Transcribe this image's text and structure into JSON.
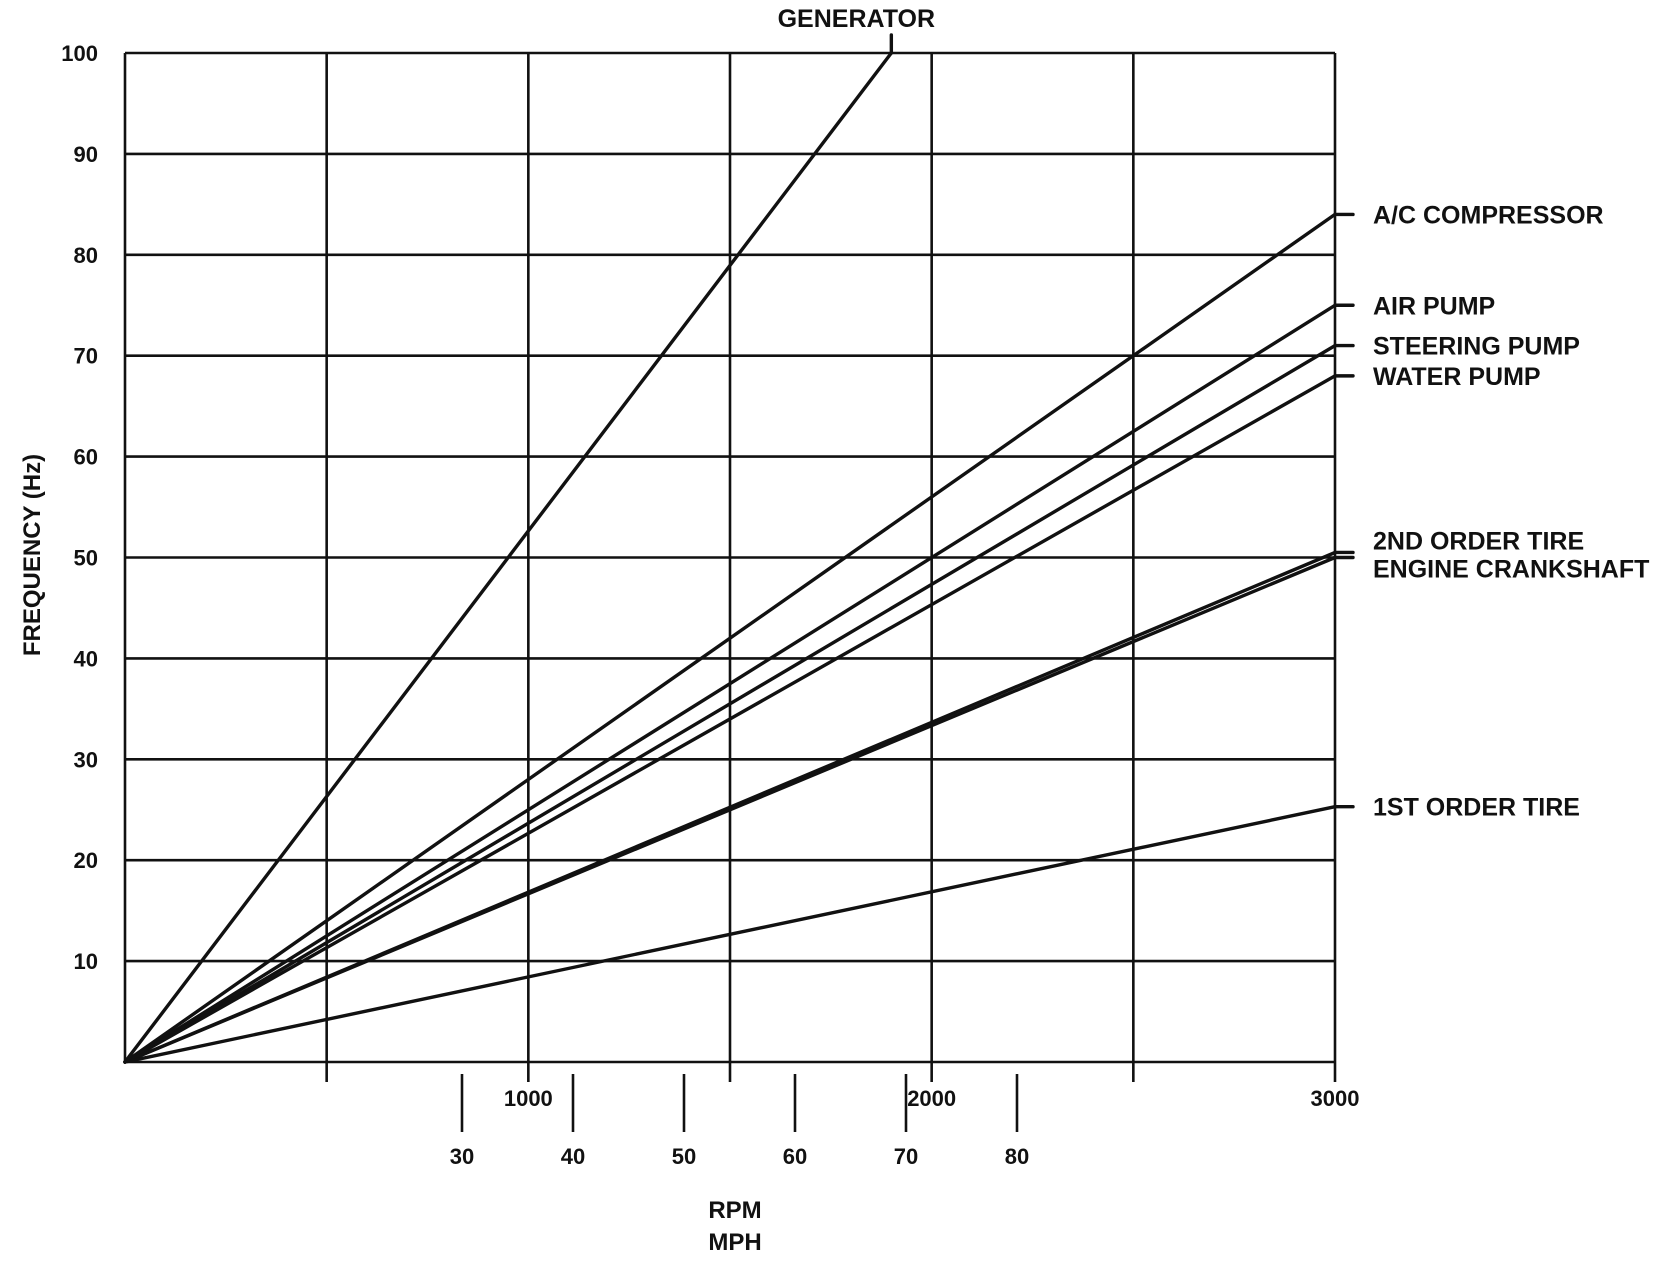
{
  "chart_data": {
    "type": "line",
    "ylabel": "FREQUENCY (Hz)",
    "xlabel_rpm": "RPM",
    "xlabel_mph": "MPH",
    "ylim": [
      0,
      100
    ],
    "yticks": [
      10,
      20,
      30,
      40,
      50,
      60,
      70,
      80,
      90,
      100
    ],
    "xlim_rpm": [
      0,
      3000
    ],
    "rpm_ticks": [
      1000,
      2000,
      3000
    ],
    "mph_ticks": [
      30,
      40,
      50,
      60,
      70,
      80
    ],
    "grid": true,
    "series": [
      {
        "name": "GENERATOR",
        "x": [
          0,
          1900
        ],
        "y": [
          0,
          100
        ]
      },
      {
        "name": "A/C COMPRESSOR",
        "x": [
          0,
          3000
        ],
        "y": [
          0,
          84
        ]
      },
      {
        "name": "AIR PUMP",
        "x": [
          0,
          3000
        ],
        "y": [
          0,
          75
        ]
      },
      {
        "name": "STEERING PUMP",
        "x": [
          0,
          3000
        ],
        "y": [
          0,
          71
        ]
      },
      {
        "name": "WATER PUMP",
        "x": [
          0,
          3000
        ],
        "y": [
          0,
          68
        ]
      },
      {
        "name": "2ND ORDER TIRE",
        "x": [
          0,
          3000
        ],
        "y": [
          0,
          50.5
        ]
      },
      {
        "name": "ENGINE CRANKSHAFT",
        "x": [
          0,
          3000
        ],
        "y": [
          0,
          50
        ]
      },
      {
        "name": "1ST ORDER TIRE",
        "x": [
          0,
          3000
        ],
        "y": [
          0,
          25.3
        ]
      }
    ]
  }
}
